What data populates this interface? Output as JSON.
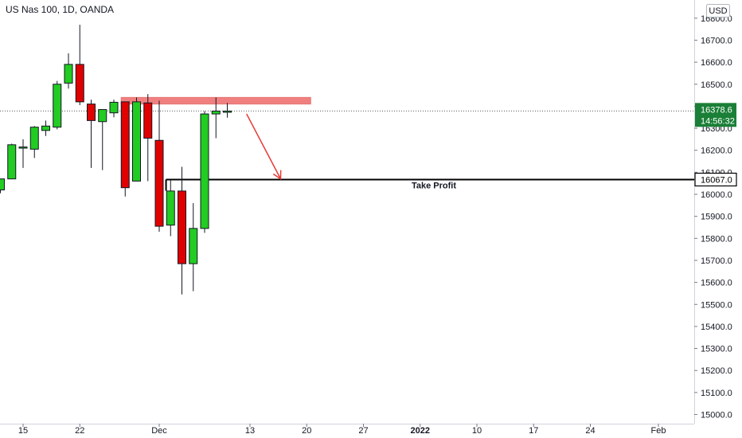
{
  "header": {
    "title": "US Nas 100, 1D, OANDA",
    "currency_button": "USD"
  },
  "colors": {
    "up": "#22cc22",
    "down": "#e00000",
    "wick": "#131722",
    "zone_fill": "#f08080",
    "arrow": "#e53935",
    "last_price_bg": "#1a7f37"
  },
  "chart_data": {
    "type": "candlestick",
    "title": "US Nas 100, 1D, OANDA",
    "ylim": [
      14950,
      16880
    ],
    "y_ticks": [
      15000,
      15100,
      15200,
      15300,
      15400,
      15500,
      15600,
      15700,
      15800,
      15900,
      16000,
      16100,
      16200,
      16300,
      16400,
      16500,
      16600,
      16700,
      16800
    ],
    "y_tick_labels": [
      "15000.0",
      "15100.0",
      "15200.0",
      "15300.0",
      "15400.0",
      "15500.0",
      "15600.0",
      "15700.0",
      "15800.0",
      "15900.0",
      "16000.0",
      "16100.0",
      "16200.0",
      "16300.0",
      "16400.0",
      "16500.0",
      "16600.0",
      "16700.0",
      "16800.0"
    ],
    "x_ticks": [
      {
        "label": "15",
        "bar": 2,
        "bold": false
      },
      {
        "label": "22",
        "bar": 7,
        "bold": false
      },
      {
        "label": "Dec",
        "bar": 14,
        "bold": false
      },
      {
        "label": "13",
        "bar": 22,
        "bold": false
      },
      {
        "label": "20",
        "bar": 27,
        "bold": false
      },
      {
        "label": "27",
        "bar": 32,
        "bold": false
      },
      {
        "label": "2022",
        "bar": 37,
        "bold": true
      },
      {
        "label": "10",
        "bar": 42,
        "bold": false
      },
      {
        "label": "17",
        "bar": 47,
        "bold": false
      },
      {
        "label": "24",
        "bar": 52,
        "bold": false
      },
      {
        "label": "Feb",
        "bar": 58,
        "bold": false
      }
    ],
    "candles": [
      {
        "o": 16020,
        "h": 16070,
        "l": 16005,
        "c": 16070
      },
      {
        "o": 16070,
        "h": 16230,
        "l": 16070,
        "c": 16225
      },
      {
        "o": 16210,
        "h": 16250,
        "l": 16120,
        "c": 16215
      },
      {
        "o": 16205,
        "h": 16310,
        "l": 16165,
        "c": 16305
      },
      {
        "o": 16290,
        "h": 16335,
        "l": 16265,
        "c": 16310
      },
      {
        "o": 16305,
        "h": 16515,
        "l": 16295,
        "c": 16500
      },
      {
        "o": 16505,
        "h": 16640,
        "l": 16480,
        "c": 16590
      },
      {
        "o": 16590,
        "h": 16770,
        "l": 16405,
        "c": 16420
      },
      {
        "o": 16410,
        "h": 16430,
        "l": 16120,
        "c": 16335
      },
      {
        "o": 16330,
        "h": 16380,
        "l": 16110,
        "c": 16385
      },
      {
        "o": 16370,
        "h": 16430,
        "l": 16350,
        "c": 16418
      },
      {
        "o": 16420,
        "h": 16420,
        "l": 15990,
        "c": 16030
      },
      {
        "o": 16060,
        "h": 16440,
        "l": 16060,
        "c": 16420
      },
      {
        "o": 16415,
        "h": 16455,
        "l": 16060,
        "c": 16255
      },
      {
        "o": 16245,
        "h": 16425,
        "l": 15830,
        "c": 15855
      },
      {
        "o": 15860,
        "h": 16065,
        "l": 15810,
        "c": 16015
      },
      {
        "o": 16015,
        "h": 16125,
        "l": 15545,
        "c": 15685
      },
      {
        "o": 15685,
        "h": 15960,
        "l": 15560,
        "c": 15845
      },
      {
        "o": 15845,
        "h": 16378,
        "l": 15825,
        "c": 16365
      },
      {
        "o": 16365,
        "h": 16440,
        "l": 16255,
        "c": 16378
      },
      {
        "o": 16378,
        "h": 16415,
        "l": 16348,
        "c": 16378
      }
    ],
    "resistance_zone": {
      "y_top": 16440,
      "y_bottom": 16410,
      "bar_start": 11,
      "bar_end": 27
    },
    "last_price": {
      "value": 16378.6,
      "label": "16378.6",
      "countdown": "14:56:32"
    },
    "take_profit": {
      "value": 16067.0,
      "label": "16067.0",
      "text": "Take Profit",
      "bar_start": 14.6
    },
    "arrow": {
      "from_bar": 21.7,
      "from_value": 16365,
      "to_bar": 24.7,
      "to_value": 16070
    }
  }
}
